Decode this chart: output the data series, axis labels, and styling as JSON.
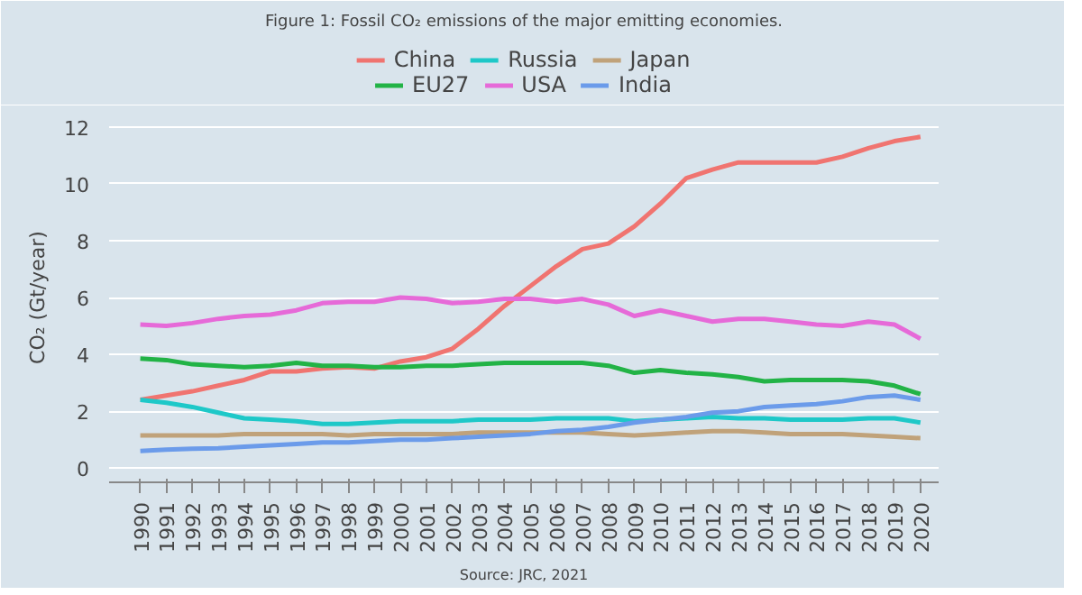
{
  "chart_data": {
    "type": "line",
    "title": "Figure 1: Fossil CO₂ emissions of the major emitting economies.",
    "ylabel": "CO₂ (Gt/year)",
    "annotations": [
      "Source: JRC, 2021"
    ],
    "categories": [
      "1990",
      "1991",
      "1992",
      "1993",
      "1994",
      "1995",
      "1996",
      "1997",
      "1998",
      "1999",
      "2000",
      "2001",
      "2002",
      "2003",
      "2004",
      "2005",
      "2006",
      "2007",
      "2008",
      "2009",
      "2010",
      "2011",
      "2012",
      "2013",
      "2014",
      "2015",
      "2016",
      "2017",
      "2018",
      "2019",
      "2020"
    ],
    "series": [
      {
        "name": "China",
        "color": "#f07470",
        "values": [
          2.4,
          2.55,
          2.7,
          2.9,
          3.1,
          3.4,
          3.4,
          3.5,
          3.55,
          3.5,
          3.75,
          3.9,
          4.2,
          4.9,
          5.7,
          6.4,
          7.1,
          7.7,
          7.9,
          8.5,
          9.3,
          10.2,
          10.5,
          10.75,
          10.75,
          10.75,
          10.75,
          10.95,
          11.25,
          11.5,
          11.65
        ]
      },
      {
        "name": "EU27",
        "color": "#22b346",
        "values": [
          3.85,
          3.8,
          3.65,
          3.6,
          3.55,
          3.6,
          3.7,
          3.6,
          3.6,
          3.55,
          3.55,
          3.6,
          3.6,
          3.65,
          3.7,
          3.7,
          3.7,
          3.7,
          3.6,
          3.35,
          3.45,
          3.35,
          3.3,
          3.2,
          3.05,
          3.1,
          3.1,
          3.1,
          3.05,
          2.9,
          2.6
        ]
      },
      {
        "name": "Russia",
        "color": "#1ec8c8",
        "values": [
          2.4,
          2.3,
          2.15,
          1.95,
          1.75,
          1.7,
          1.65,
          1.55,
          1.55,
          1.6,
          1.65,
          1.65,
          1.65,
          1.7,
          1.7,
          1.7,
          1.75,
          1.75,
          1.75,
          1.65,
          1.7,
          1.75,
          1.8,
          1.75,
          1.75,
          1.7,
          1.7,
          1.7,
          1.75,
          1.75,
          1.6
        ]
      },
      {
        "name": "USA",
        "color": "#e66ad8",
        "values": [
          5.05,
          5.0,
          5.1,
          5.25,
          5.35,
          5.4,
          5.55,
          5.8,
          5.85,
          5.85,
          6.0,
          5.95,
          5.8,
          5.85,
          5.95,
          5.95,
          5.85,
          5.95,
          5.75,
          5.35,
          5.55,
          5.35,
          5.15,
          5.25,
          5.25,
          5.15,
          5.05,
          5.0,
          5.15,
          5.05,
          4.55
        ]
      },
      {
        "name": "Japan",
        "color": "#c0a27a",
        "values": [
          1.15,
          1.15,
          1.15,
          1.15,
          1.2,
          1.2,
          1.2,
          1.2,
          1.15,
          1.2,
          1.2,
          1.2,
          1.2,
          1.25,
          1.25,
          1.25,
          1.25,
          1.25,
          1.2,
          1.15,
          1.2,
          1.25,
          1.3,
          1.3,
          1.25,
          1.2,
          1.2,
          1.2,
          1.15,
          1.1,
          1.05
        ]
      },
      {
        "name": "India",
        "color": "#6b9bea",
        "values": [
          0.6,
          0.65,
          0.68,
          0.7,
          0.75,
          0.8,
          0.85,
          0.9,
          0.9,
          0.95,
          1.0,
          1.0,
          1.05,
          1.1,
          1.15,
          1.2,
          1.3,
          1.35,
          1.45,
          1.6,
          1.7,
          1.8,
          1.95,
          2.0,
          2.15,
          2.2,
          2.25,
          2.35,
          2.5,
          2.55,
          2.4
        ]
      }
    ],
    "ylim": [
      -0.5,
      12.5
    ],
    "yticks": [
      0,
      2,
      4,
      6,
      8,
      10,
      12
    ],
    "grid": "y",
    "legend": "top",
    "line_style": "solid",
    "marker": "none"
  }
}
